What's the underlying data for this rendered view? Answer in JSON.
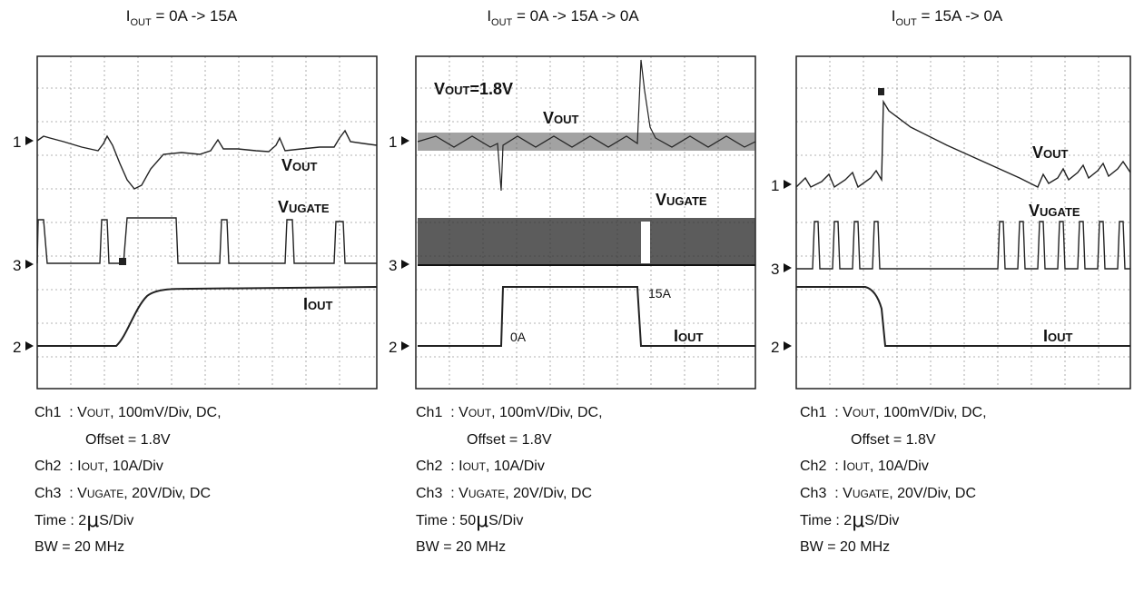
{
  "chart_data": [
    {
      "type": "line",
      "title": "I_OUT = 0A -> 15A",
      "channel_markers": [
        "1",
        "3",
        "2"
      ],
      "annotations": [
        "VOUT",
        "VUGATE",
        "IOUT"
      ],
      "grid": true,
      "series": [
        {
          "name": "VOUT",
          "channel": 1,
          "shape": "ripple with undershoot dip after load step"
        },
        {
          "name": "VUGATE",
          "channel": 3,
          "shape": "switching pulses, extended on-time during step"
        },
        {
          "name": "IOUT",
          "channel": 2,
          "shape": "step 0A to 15A"
        }
      ],
      "notes": [
        "Ch1  : VOUT, 100mV/Div, DC,",
        "Offset = 1.8V",
        "Ch2  : IOUT, 10A/Div",
        "Ch3  : VUGATE, 20V/Div, DC",
        "Time : 2",
        "S/Div",
        "BW = 20 MHz"
      ]
    },
    {
      "type": "line",
      "title": "I_OUT = 0A -> 15A -> 0A",
      "channel_markers": [
        "1",
        "3",
        "2"
      ],
      "annotations": [
        "VOUT=1.8V",
        "VOUT",
        "VUGATE",
        "IOUT",
        "0A",
        "15A"
      ],
      "grid": true,
      "series": [
        {
          "name": "VOUT",
          "channel": 1,
          "shape": "noisy ripple, negative spike at step up, positive spike at step down"
        },
        {
          "name": "VUGATE",
          "channel": 3,
          "shape": "dense switching pulses"
        },
        {
          "name": "IOUT",
          "channel": 2,
          "shape": "0A -> 15A -> 0A pulse"
        }
      ],
      "notes": [
        "Ch1  : VOUT, 100mV/Div, DC,",
        "Offset = 1.8V",
        "Ch2  : IOUT, 10A/Div",
        "Ch3  : VUGATE, 20V/Div, DC",
        "Time : 50",
        "S/Div",
        "BW = 20 MHz"
      ]
    },
    {
      "type": "line",
      "title": "I_OUT = 15A -> 0A",
      "channel_markers": [
        "1",
        "3",
        "2"
      ],
      "annotations": [
        "VOUT",
        "VUGATE",
        "IOUT"
      ],
      "grid": true,
      "series": [
        {
          "name": "VOUT",
          "channel": 1,
          "shape": "overshoot spike then linear decay, ripple resumes"
        },
        {
          "name": "VUGATE",
          "channel": 3,
          "shape": "switching pulses, pause after load release"
        },
        {
          "name": "IOUT",
          "channel": 2,
          "shape": "step 15A to 0A"
        }
      ],
      "notes": [
        "Ch1  : VOUT, 100mV/Div, DC,",
        "Offset = 1.8V",
        "Ch2  : IOUT, 10A/Div",
        "Ch3  : VUGATE, 20V/Div, DC",
        "Time : 2",
        "S/Div",
        "BW = 20 MHz"
      ]
    }
  ],
  "mu_symbol": "μ",
  "colors": {
    "trace": "#222222",
    "grid": "#9a9a9a",
    "frame": "#222222"
  }
}
